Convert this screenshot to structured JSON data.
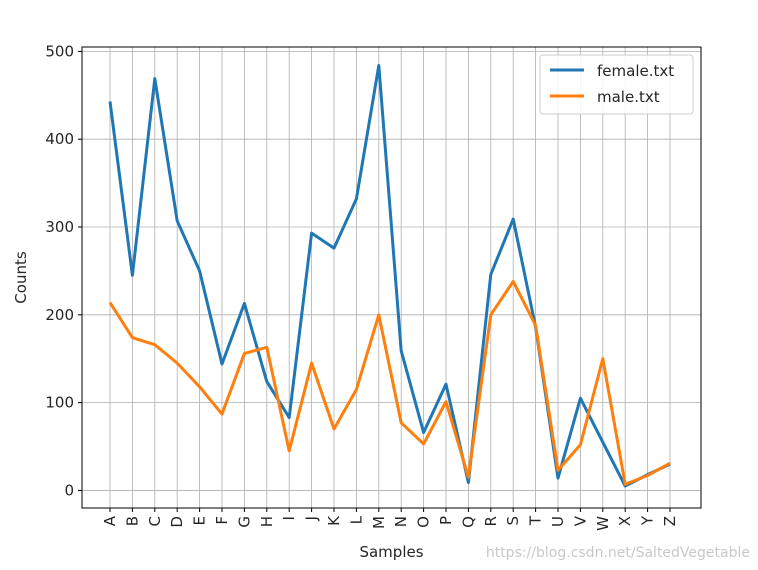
{
  "chart_data": {
    "type": "line",
    "title": "",
    "xlabel": "Samples",
    "ylabel": "Counts",
    "categories": [
      "A",
      "B",
      "C",
      "D",
      "E",
      "F",
      "G",
      "H",
      "I",
      "J",
      "K",
      "L",
      "M",
      "N",
      "O",
      "P",
      "Q",
      "R",
      "S",
      "T",
      "U",
      "V",
      "W",
      "X",
      "Y",
      "Z"
    ],
    "ylim": [
      -20,
      505
    ],
    "yticks": [
      0,
      100,
      200,
      300,
      400,
      500
    ],
    "grid": true,
    "legend_position": "top-right",
    "series": [
      {
        "name": "female.txt",
        "color": "#1f77b4",
        "values": [
          443,
          245,
          469,
          307,
          250,
          144,
          213,
          124,
          83,
          293,
          276,
          332,
          484,
          159,
          66,
          121,
          9,
          246,
          309,
          186,
          14,
          105,
          55,
          5,
          18,
          30
        ]
      },
      {
        "name": "male.txt",
        "color": "#ff7f0e",
        "values": [
          214,
          174,
          166,
          145,
          118,
          87,
          156,
          163,
          45,
          145,
          70,
          115,
          200,
          77,
          53,
          101,
          15,
          200,
          238,
          188,
          23,
          52,
          150,
          7,
          17,
          31
        ]
      }
    ]
  },
  "watermark": "https://blog.csdn.net/SaltedVegetable"
}
